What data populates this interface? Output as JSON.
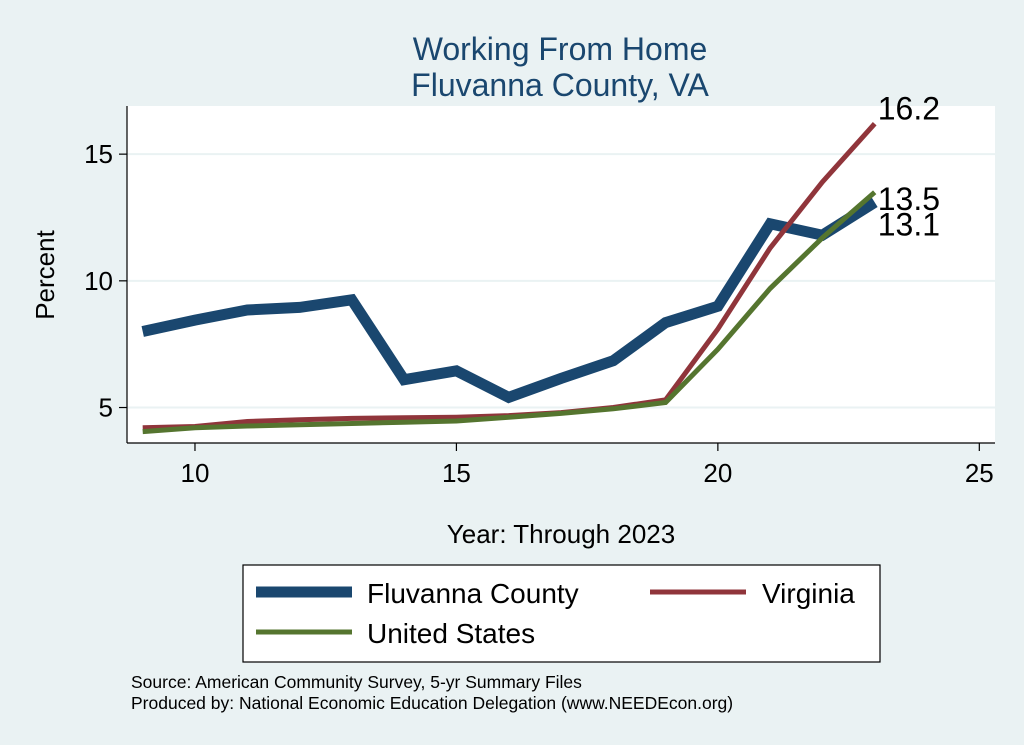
{
  "chart_data": {
    "type": "line",
    "title": [
      "Working From Home",
      "Fluvanna County, VA"
    ],
    "xlabel": "Year: Through 2023",
    "ylabel": "Percent",
    "xlim": [
      8.7,
      25.3
    ],
    "ylim": [
      3.6,
      16.9
    ],
    "xticks": [
      10,
      15,
      20,
      25
    ],
    "yticks": [
      5,
      10,
      15
    ],
    "grid": true,
    "legend_position": "bottom",
    "x": [
      9,
      10,
      11,
      12,
      13,
      14,
      15,
      16,
      17,
      18,
      19,
      20,
      21,
      22,
      23
    ],
    "series": [
      {
        "name": "Fluvanna County",
        "color": "#1a476f",
        "width": 11,
        "values": [
          8.0,
          8.45,
          8.85,
          8.95,
          9.25,
          6.1,
          6.45,
          5.4,
          6.15,
          6.85,
          8.35,
          9.0,
          12.25,
          11.8,
          13.1
        ],
        "end_label": "13.1"
      },
      {
        "name": "Virginia",
        "color": "#90353b",
        "width": 5,
        "values": [
          4.2,
          4.25,
          4.45,
          4.52,
          4.57,
          4.6,
          4.62,
          4.68,
          4.8,
          5.0,
          5.3,
          8.1,
          11.3,
          13.9,
          16.2
        ],
        "end_label": "16.2"
      },
      {
        "name": "United States",
        "color": "#55752f",
        "width": 5,
        "values": [
          4.05,
          4.2,
          4.27,
          4.32,
          4.37,
          4.42,
          4.47,
          4.62,
          4.77,
          4.95,
          5.2,
          7.3,
          9.7,
          11.7,
          13.5
        ],
        "end_label": "13.5"
      }
    ],
    "legend_order": [
      "Fluvanna County",
      "Virginia",
      "United States"
    ]
  },
  "notes": {
    "source": "Source: American Community Survey, 5-yr Summary Files",
    "produced": "Produced by: National Economic Education Delegation (www.NEEDEcon.org)"
  }
}
